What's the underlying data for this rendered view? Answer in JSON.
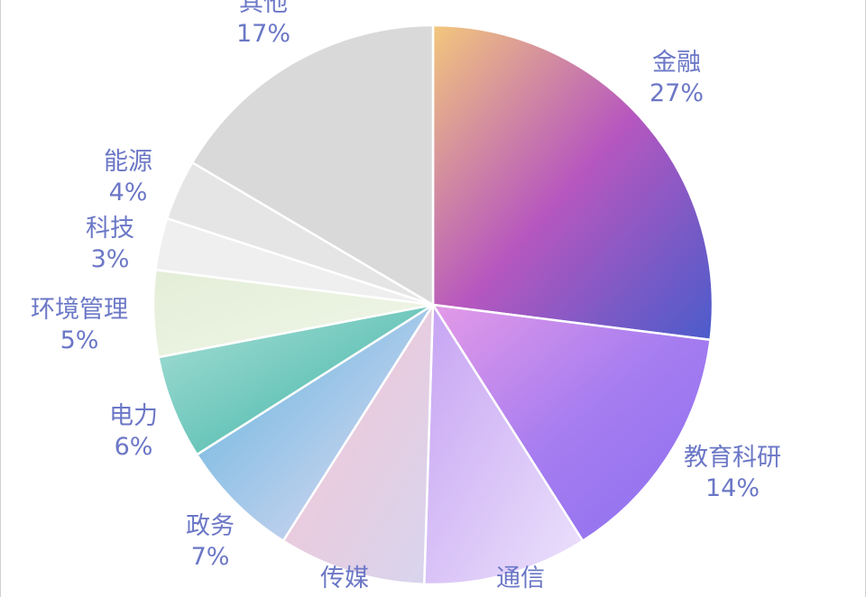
{
  "chart_data": {
    "type": "pie",
    "label_color": "#6b77c6",
    "slices": [
      {
        "name": "金融",
        "pct": 27,
        "label_pct": "27%",
        "colors": [
          "#f3c77c",
          "#b657bf",
          "#4a5ccb"
        ]
      },
      {
        "name": "教育科研",
        "pct": 14,
        "label_pct": "14%",
        "colors": [
          "#e49ae7",
          "#a77df0",
          "#8a6ff0"
        ]
      },
      {
        "name": "通信",
        "pct": 9.5,
        "label_pct": "",
        "colors": [
          "#c6a3f3",
          "#ece2fb"
        ]
      },
      {
        "name": "传媒",
        "pct": 8.5,
        "label_pct": "",
        "colors": [
          "#f7c4d2",
          "#d7d5ee"
        ]
      },
      {
        "name": "政务",
        "pct": 7,
        "label_pct": "7%",
        "colors": [
          "#5fb3dd",
          "#e6dcf4"
        ]
      },
      {
        "name": "电力",
        "pct": 6,
        "label_pct": "6%",
        "colors": [
          "#a9dfd7",
          "#3ab2a3"
        ]
      },
      {
        "name": "环境管理",
        "pct": 5,
        "label_pct": "5%",
        "colors": [
          "#e3eed8",
          "#f1f6e8"
        ]
      },
      {
        "name": "科技",
        "pct": 3,
        "label_pct": "3%",
        "colors": [
          "#efefef",
          "#efefef"
        ]
      },
      {
        "name": "能源",
        "pct": 3.5,
        "label_pct": "4%",
        "colors": [
          "#e5e5e5",
          "#e5e5e5"
        ]
      },
      {
        "name": "其他",
        "pct": 16.5,
        "label_pct": "17%",
        "colors": [
          "#d9d9d9",
          "#d9d9d9"
        ]
      }
    ]
  }
}
